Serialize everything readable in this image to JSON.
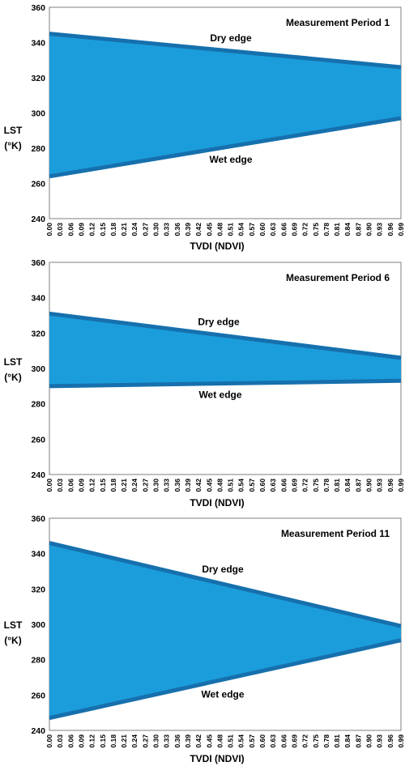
{
  "chart_data": [
    {
      "type": "area",
      "title": "Measurement Period 1",
      "xlabel": "TVDI (NDVI)",
      "ylabel": "LST (°K)",
      "ylim": [
        240,
        360
      ],
      "yticks": [
        240,
        260,
        280,
        300,
        320,
        340,
        360
      ],
      "xlim": [
        0,
        0.99
      ],
      "series": [
        {
          "name": "Dry edge",
          "x": [
            0,
            0.99
          ],
          "values": [
            345,
            326
          ]
        },
        {
          "name": "Wet edge",
          "x": [
            0,
            0.99
          ],
          "values": [
            264,
            297
          ]
        }
      ]
    },
    {
      "type": "area",
      "title": "Measurement Period 6",
      "xlabel": "TVDI (NDVI)",
      "ylabel": "LST (°K)",
      "ylim": [
        240,
        360
      ],
      "yticks": [
        240,
        260,
        280,
        300,
        320,
        340,
        360
      ],
      "xlim": [
        0,
        0.99
      ],
      "series": [
        {
          "name": "Dry edge",
          "x": [
            0,
            0.99
          ],
          "values": [
            331,
            306
          ]
        },
        {
          "name": "Wet edge",
          "x": [
            0,
            0.99
          ],
          "values": [
            290,
            293
          ]
        }
      ]
    },
    {
      "type": "area",
      "title": "Measurement Period 11",
      "xlabel": "TVDI (NDVI)",
      "ylabel": "LST (°K)",
      "ylim": [
        240,
        360
      ],
      "yticks": [
        240,
        260,
        280,
        300,
        320,
        340,
        360
      ],
      "xlim": [
        0,
        0.99
      ],
      "series": [
        {
          "name": "Dry edge",
          "x": [
            0,
            0.99
          ],
          "values": [
            346,
            299
          ]
        },
        {
          "name": "Wet edge",
          "x": [
            0,
            0.99
          ],
          "values": [
            247,
            291
          ]
        }
      ]
    }
  ],
  "x_tick_labels": [
    "0.00",
    "0.03",
    "0.06",
    "0.09",
    "0.12",
    "0.15",
    "0.18",
    "0.21",
    "0.24",
    "0.27",
    "0.30",
    "0.33",
    "0.36",
    "0.39",
    "0.42",
    "0.45",
    "0.48",
    "0.51",
    "0.54",
    "0.57",
    "0.60",
    "0.63",
    "0.66",
    "0.69",
    "0.72",
    "0.75",
    "0.78",
    "0.81",
    "0.84",
    "0.87",
    "0.90",
    "0.93",
    "0.96",
    "0.99"
  ],
  "colors": {
    "fill": "#1b9ddb",
    "edge": "#1670ad",
    "border": "#7f7f7f",
    "text": "#000000"
  }
}
